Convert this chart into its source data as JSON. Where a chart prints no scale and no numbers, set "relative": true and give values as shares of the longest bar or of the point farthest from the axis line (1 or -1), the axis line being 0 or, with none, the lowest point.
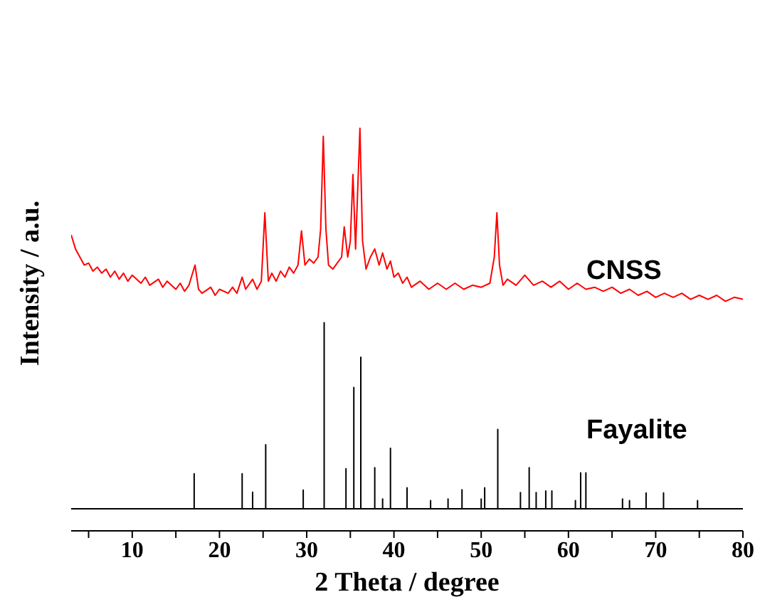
{
  "chart_data": {
    "type": "line",
    "xlabel": "2 Theta / degree",
    "ylabel": "Intensity / a.u.",
    "relative": true,
    "legend": false,
    "grid": false,
    "marker": "none",
    "line_style": "solid",
    "xlim": [
      3,
      80
    ],
    "xticks": [
      {
        "value": 5,
        "label": null
      },
      10,
      {
        "value": 15,
        "label": null
      },
      20,
      {
        "value": 25,
        "label": null
      },
      30,
      {
        "value": 35,
        "label": null
      },
      40,
      {
        "value": 45,
        "label": null
      },
      50,
      {
        "value": 55,
        "label": null
      },
      60,
      {
        "value": 65,
        "label": null
      },
      70,
      {
        "value": 75,
        "label": null
      },
      80
    ],
    "series": [
      {
        "name": "CNSS",
        "color": "#ff0000",
        "x": [
          3,
          3.5,
          4,
          4.5,
          5,
          5.5,
          6,
          6.5,
          7,
          7.5,
          8,
          8.5,
          9,
          9.5,
          10,
          11,
          11.5,
          12,
          13,
          13.5,
          14,
          15,
          15.5,
          16,
          16.5,
          17.2,
          17.6,
          18,
          19,
          19.5,
          20,
          21,
          21.5,
          22,
          22.6,
          23,
          23.8,
          24.3,
          24.8,
          25.2,
          25.6,
          26,
          26.5,
          27,
          27.5,
          28,
          28.5,
          29,
          29.4,
          29.8,
          30.3,
          30.8,
          31.3,
          31.6,
          31.9,
          32.2,
          32.5,
          33,
          33.5,
          34,
          34.3,
          34.7,
          35,
          35.3,
          35.6,
          36.1,
          36.4,
          36.8,
          37.3,
          37.8,
          38.3,
          38.7,
          39.2,
          39.6,
          40,
          40.5,
          41,
          41.5,
          42,
          43,
          44,
          45,
          46,
          47,
          48,
          49,
          50,
          51,
          51.5,
          51.8,
          52.1,
          52.5,
          53,
          54,
          55,
          56,
          57,
          58,
          59,
          60,
          61,
          62,
          63,
          64,
          65,
          66,
          67,
          68,
          69,
          70,
          71,
          72,
          73,
          74,
          75,
          76,
          77,
          78,
          79,
          80
        ],
        "values": [
          0.735,
          0.7,
          0.68,
          0.66,
          0.665,
          0.645,
          0.655,
          0.64,
          0.65,
          0.63,
          0.645,
          0.625,
          0.64,
          0.62,
          0.635,
          0.615,
          0.63,
          0.61,
          0.625,
          0.605,
          0.62,
          0.6,
          0.615,
          0.595,
          0.61,
          0.66,
          0.6,
          0.59,
          0.605,
          0.585,
          0.6,
          0.59,
          0.605,
          0.59,
          0.63,
          0.6,
          0.625,
          0.6,
          0.62,
          0.79,
          0.62,
          0.64,
          0.62,
          0.645,
          0.63,
          0.655,
          0.64,
          0.66,
          0.745,
          0.66,
          0.675,
          0.665,
          0.68,
          0.75,
          0.98,
          0.75,
          0.66,
          0.65,
          0.665,
          0.68,
          0.755,
          0.68,
          0.72,
          0.885,
          0.7,
          1.0,
          0.72,
          0.65,
          0.68,
          0.7,
          0.66,
          0.69,
          0.65,
          0.67,
          0.63,
          0.64,
          0.615,
          0.63,
          0.605,
          0.62,
          0.6,
          0.615,
          0.6,
          0.615,
          0.6,
          0.61,
          0.605,
          0.615,
          0.68,
          0.79,
          0.66,
          0.61,
          0.625,
          0.61,
          0.635,
          0.61,
          0.62,
          0.605,
          0.62,
          0.6,
          0.615,
          0.6,
          0.605,
          0.595,
          0.605,
          0.59,
          0.6,
          0.585,
          0.595,
          0.58,
          0.59,
          0.58,
          0.59,
          0.575,
          0.585,
          0.575,
          0.585,
          0.57,
          0.58,
          0.575
        ]
      },
      {
        "name": "Fayalite",
        "color": "#000000",
        "x": [
          3,
          17.1,
          17.1,
          17.1,
          22.6,
          22.6,
          22.6,
          23.8,
          23.8,
          23.8,
          25.3,
          25.3,
          25.3,
          29.6,
          29.6,
          29.6,
          32.0,
          32.0,
          32.0,
          34.5,
          34.5,
          34.5,
          35.4,
          35.4,
          35.4,
          36.2,
          36.2,
          36.2,
          37.8,
          37.8,
          37.8,
          38.7,
          38.7,
          38.7,
          39.6,
          39.6,
          39.6,
          41.5,
          41.5,
          41.5,
          44.2,
          44.2,
          44.2,
          46.2,
          46.2,
          46.2,
          47.8,
          47.8,
          47.8,
          50.0,
          50.0,
          50.0,
          50.4,
          50.4,
          50.4,
          51.9,
          51.9,
          51.9,
          54.5,
          54.5,
          54.5,
          55.5,
          55.5,
          55.5,
          56.3,
          56.3,
          56.3,
          57.4,
          57.4,
          57.4,
          58.1,
          58.1,
          58.1,
          60.8,
          60.8,
          60.8,
          61.4,
          61.4,
          61.4,
          62.0,
          62.0,
          62.0,
          66.2,
          66.2,
          66.2,
          67.0,
          67.0,
          67.0,
          68.9,
          68.9,
          68.9,
          70.9,
          70.9,
          70.9,
          74.8,
          74.8,
          74.8,
          80
        ],
        "values": [
          0.055,
          0.055,
          0.142,
          0.055,
          0.055,
          0.142,
          0.055,
          0.055,
          0.096,
          0.055,
          0.055,
          0.214,
          0.055,
          0.055,
          0.101,
          0.055,
          0.055,
          0.517,
          0.055,
          0.055,
          0.154,
          0.055,
          0.055,
          0.356,
          0.055,
          0.055,
          0.431,
          0.055,
          0.055,
          0.157,
          0.055,
          0.055,
          0.079,
          0.055,
          0.055,
          0.205,
          0.055,
          0.055,
          0.107,
          0.055,
          0.055,
          0.075,
          0.055,
          0.055,
          0.079,
          0.055,
          0.055,
          0.102,
          0.055,
          0.055,
          0.079,
          0.055,
          0.055,
          0.107,
          0.055,
          0.055,
          0.252,
          0.055,
          0.055,
          0.095,
          0.055,
          0.055,
          0.157,
          0.055,
          0.055,
          0.095,
          0.055,
          0.055,
          0.099,
          0.055,
          0.055,
          0.099,
          0.055,
          0.055,
          0.075,
          0.055,
          0.055,
          0.144,
          0.055,
          0.055,
          0.144,
          0.055,
          0.055,
          0.079,
          0.055,
          0.055,
          0.075,
          0.055,
          0.055,
          0.094,
          0.055,
          0.055,
          0.094,
          0.055,
          0.055,
          0.075,
          0.055,
          0.055
        ]
      }
    ]
  }
}
